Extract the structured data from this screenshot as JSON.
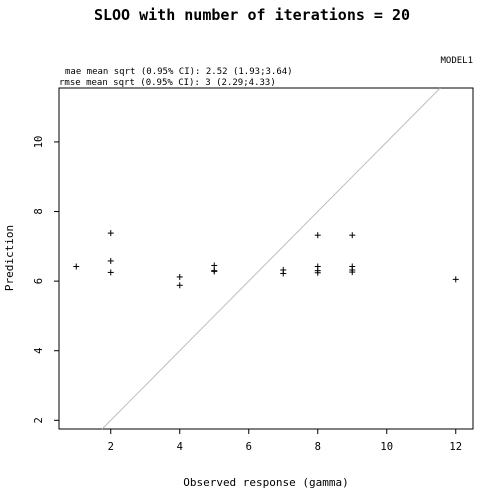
{
  "chart_data": {
    "type": "scatter",
    "title": "SLOO with number of iterations =  20",
    "model_label": "MODEL1",
    "annotations": [
      "mae mean sqrt (0.95% CI): 2.52 (1.93;3.64)",
      "rmse mean sqrt (0.95% CI): 3 (2.29;4.33)"
    ],
    "xlabel": "Observed response (gamma)",
    "ylabel": "Prediction",
    "xlim": [
      0.5,
      12.5
    ],
    "ylim": [
      1.75,
      11.55
    ],
    "x_ticks": [
      2,
      4,
      6,
      8,
      10,
      12
    ],
    "y_ticks": [
      2,
      4,
      6,
      8,
      10
    ],
    "marker": "+",
    "reference_line": "y = x",
    "grid": false,
    "points": [
      {
        "x": 1,
        "y": 6.42
      },
      {
        "x": 2,
        "y": 7.38
      },
      {
        "x": 2,
        "y": 6.58
      },
      {
        "x": 2,
        "y": 6.25
      },
      {
        "x": 4,
        "y": 6.12
      },
      {
        "x": 4,
        "y": 5.88
      },
      {
        "x": 5,
        "y": 6.45
      },
      {
        "x": 5,
        "y": 6.3
      },
      {
        "x": 5,
        "y": 6.28
      },
      {
        "x": 7,
        "y": 6.32
      },
      {
        "x": 7,
        "y": 6.22
      },
      {
        "x": 8,
        "y": 7.32
      },
      {
        "x": 8,
        "y": 6.42
      },
      {
        "x": 8,
        "y": 6.3
      },
      {
        "x": 8,
        "y": 6.24
      },
      {
        "x": 9,
        "y": 7.32
      },
      {
        "x": 9,
        "y": 6.42
      },
      {
        "x": 9,
        "y": 6.32
      },
      {
        "x": 9,
        "y": 6.26
      },
      {
        "x": 12,
        "y": 6.05
      }
    ]
  }
}
